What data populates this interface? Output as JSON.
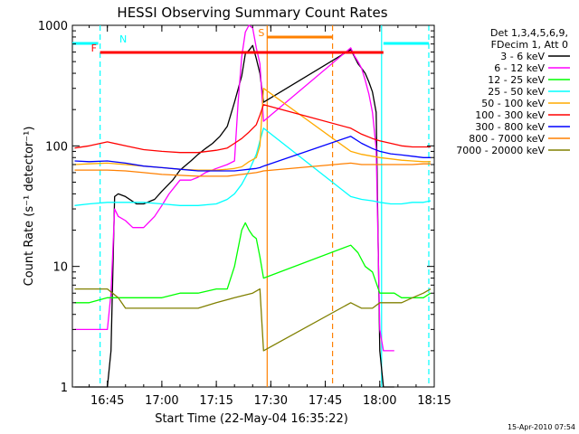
{
  "chart_data": {
    "type": "line",
    "title": "HESSI Observing Summary Count Rates",
    "xlabel": "Start Time (22-May-04 16:35:22)",
    "ylabel": "Count Rate (s⁻¹ detector⁻¹)",
    "yscale": "log",
    "ylim": [
      1,
      1000
    ],
    "xlim": [
      "16:35:22",
      "18:15:00"
    ],
    "x_ticks": [
      "16:45",
      "17:00",
      "17:15",
      "17:30",
      "17:45",
      "18:00",
      "18:15"
    ],
    "y_ticks": [
      "1",
      "10",
      "100",
      "1000"
    ],
    "legend_header": [
      "Det 1,3,4,5,6,9,",
      "FDecim 1, Att 0"
    ],
    "legend_position": "right",
    "timestamp": "15-Apr-2010 07:54",
    "series": [
      {
        "name": "3 - 6 keV",
        "color": "#000000",
        "x": [
          "16:36",
          "16:40",
          "16:44",
          "16:45",
          "16:46",
          "16:47",
          "16:48",
          "16:50",
          "16:53",
          "16:55",
          "16:58",
          "17:00",
          "17:03",
          "17:05",
          "17:08",
          "17:10",
          "17:12",
          "17:14",
          "17:16",
          "17:18",
          "17:20",
          "17:22",
          "17:23",
          "17:24",
          "17:25",
          "17:26",
          "17:27",
          "17:28",
          "17:52",
          "17:53",
          "17:54",
          "17:55",
          "17:56",
          "17:57",
          "17:58",
          "17:59",
          "18:00",
          "18:01",
          "18:02",
          "18:04"
        ],
        "y": [
          1,
          1,
          1,
          1,
          2,
          38,
          40,
          38,
          33,
          33,
          36,
          42,
          52,
          63,
          75,
          85,
          95,
          105,
          120,
          145,
          230,
          380,
          580,
          620,
          680,
          530,
          400,
          230,
          630,
          550,
          480,
          440,
          400,
          340,
          280,
          190,
          2,
          1,
          1,
          1
        ]
      },
      {
        "name": "6 - 12 keV",
        "color": "#ff00ff",
        "x": [
          "16:36",
          "16:40",
          "16:44",
          "16:45",
          "16:46",
          "16:47",
          "16:48",
          "16:50",
          "16:52",
          "16:55",
          "16:58",
          "17:00",
          "17:02",
          "17:05",
          "17:08",
          "17:10",
          "17:12",
          "17:15",
          "17:18",
          "17:20",
          "17:21",
          "17:22",
          "17:23",
          "17:24",
          "17:25",
          "17:26",
          "17:27",
          "17:28",
          "17:52",
          "17:53",
          "17:54",
          "17:55",
          "17:56",
          "17:57",
          "17:58",
          "17:59",
          "18:00",
          "18:01",
          "18:02",
          "18:04"
        ],
        "y": [
          3,
          3,
          3,
          3,
          6,
          30,
          26,
          24,
          21,
          21,
          26,
          32,
          40,
          52,
          52,
          55,
          60,
          65,
          70,
          75,
          230,
          550,
          880,
          1000,
          950,
          650,
          480,
          160,
          650,
          560,
          500,
          440,
          350,
          270,
          190,
          95,
          3,
          2,
          2,
          2
        ]
      },
      {
        "name": "12 - 25 keV",
        "color": "#00ff00",
        "x": [
          "16:36",
          "16:40",
          "16:45",
          "16:50",
          "16:55",
          "17:00",
          "17:05",
          "17:10",
          "17:15",
          "17:18",
          "17:20",
          "17:22",
          "17:23",
          "17:24",
          "17:25",
          "17:26",
          "17:27",
          "17:28",
          "17:52",
          "17:54",
          "17:56",
          "17:58",
          "18:00",
          "18:02",
          "18:04",
          "18:06",
          "18:09",
          "18:12",
          "18:14"
        ],
        "y": [
          5,
          5,
          5.5,
          5.5,
          5.5,
          5.5,
          6,
          6,
          6.5,
          6.5,
          10,
          20,
          23,
          20,
          18,
          17,
          12,
          8,
          15,
          13,
          10,
          9,
          6,
          6,
          6,
          5.5,
          5.5,
          5.5,
          6
        ]
      },
      {
        "name": "25 - 50 keV",
        "color": "#00ffff",
        "x": [
          "16:36",
          "16:40",
          "16:45",
          "16:50",
          "16:55",
          "17:00",
          "17:05",
          "17:10",
          "17:15",
          "17:18",
          "17:20",
          "17:22",
          "17:24",
          "17:26",
          "17:27",
          "17:28",
          "17:52",
          "17:55",
          "17:58",
          "18:00",
          "18:03",
          "18:06",
          "18:09",
          "18:12",
          "18:14"
        ],
        "y": [
          32,
          33,
          34,
          34,
          34,
          33,
          32,
          32,
          33,
          36,
          40,
          48,
          62,
          85,
          110,
          140,
          38,
          36,
          35,
          34,
          33,
          33,
          34,
          34,
          35
        ]
      },
      {
        "name": "50 - 100 keV",
        "color": "#ffaa00",
        "x": [
          "16:36",
          "16:40",
          "16:45",
          "16:50",
          "16:55",
          "17:00",
          "17:05",
          "17:10",
          "17:15",
          "17:18",
          "17:20",
          "17:22",
          "17:24",
          "17:26",
          "17:27",
          "17:28",
          "17:52",
          "17:55",
          "17:58",
          "18:00",
          "18:03",
          "18:06",
          "18:09",
          "18:12",
          "18:14"
        ],
        "y": [
          70,
          71,
          72,
          70,
          68,
          66,
          64,
          63,
          63,
          64,
          65,
          67,
          74,
          80,
          100,
          300,
          90,
          85,
          82,
          80,
          78,
          76,
          75,
          74,
          74
        ]
      },
      {
        "name": "100 - 300 keV",
        "color": "#ff0000",
        "x": [
          "16:36",
          "16:40",
          "16:45",
          "16:50",
          "16:55",
          "17:00",
          "17:05",
          "17:10",
          "17:15",
          "17:18",
          "17:20",
          "17:22",
          "17:24",
          "17:26",
          "17:27",
          "17:28",
          "17:52",
          "17:55",
          "17:58",
          "18:00",
          "18:03",
          "18:06",
          "18:09",
          "18:12",
          "18:14"
        ],
        "y": [
          96,
          100,
          108,
          100,
          93,
          90,
          88,
          88,
          92,
          96,
          105,
          115,
          130,
          150,
          180,
          220,
          140,
          125,
          115,
          110,
          105,
          100,
          98,
          98,
          98
        ]
      },
      {
        "name": "300 - 800 keV",
        "color": "#0000ff",
        "x": [
          "16:36",
          "16:40",
          "16:45",
          "16:50",
          "16:55",
          "17:00",
          "17:05",
          "17:10",
          "17:15",
          "17:18",
          "17:20",
          "17:22",
          "17:24",
          "17:26",
          "17:27",
          "17:28",
          "17:52",
          "17:55",
          "17:58",
          "18:00",
          "18:03",
          "18:06",
          "18:09",
          "18:12",
          "18:14"
        ],
        "y": [
          75,
          74,
          75,
          72,
          68,
          66,
          64,
          62,
          62,
          62,
          62,
          63,
          64,
          65,
          66,
          68,
          120,
          105,
          95,
          90,
          86,
          84,
          82,
          80,
          80
        ]
      },
      {
        "name": "800 - 7000 keV",
        "color": "#ff8000",
        "x": [
          "16:36",
          "16:40",
          "16:45",
          "16:50",
          "16:55",
          "17:00",
          "17:05",
          "17:10",
          "17:15",
          "17:18",
          "17:20",
          "17:22",
          "17:24",
          "17:26",
          "17:27",
          "17:28",
          "17:52",
          "17:55",
          "17:58",
          "18:00",
          "18:03",
          "18:06",
          "18:09",
          "18:12",
          "18:14"
        ],
        "y": [
          63,
          63,
          63,
          62,
          60,
          58,
          57,
          56,
          56,
          56,
          57,
          58,
          59,
          60,
          61,
          62,
          72,
          70,
          70,
          70,
          70,
          70,
          70,
          71,
          71
        ]
      },
      {
        "name": "7000 - 20000 keV",
        "color": "#808000",
        "x": [
          "16:36",
          "16:40",
          "16:45",
          "16:48",
          "16:50",
          "16:55",
          "17:00",
          "17:05",
          "17:10",
          "17:15",
          "17:20",
          "17:25",
          "17:27",
          "17:28",
          "17:52",
          "17:55",
          "17:58",
          "18:00",
          "18:03",
          "18:06",
          "18:09",
          "18:12",
          "18:14"
        ],
        "y": [
          6.5,
          6.5,
          6.5,
          5.5,
          4.5,
          4.5,
          4.5,
          4.5,
          4.5,
          5,
          5.5,
          6,
          6.5,
          2,
          5,
          4.5,
          4.5,
          5,
          5,
          5,
          5.5,
          6,
          6.5
        ]
      }
    ],
    "flag_bars": [
      {
        "label": "N",
        "color": "#00ffff",
        "segments": [
          [
            "16:35:22",
            "16:42:30"
          ],
          [
            "18:01:00",
            "18:13:30"
          ]
        ]
      },
      {
        "label": "F",
        "color": "#ff0000",
        "segments": [
          [
            "16:43:00",
            "18:01:00"
          ]
        ]
      },
      {
        "label": "S",
        "color": "#ff8000",
        "segments": [
          [
            "17:29:00",
            "17:47:00"
          ]
        ]
      }
    ],
    "vertical_lines": [
      {
        "x": "16:43:00",
        "color": "#00ffff",
        "style": "dashed"
      },
      {
        "x": "18:00:30",
        "color": "#00ffff",
        "style": "solid"
      },
      {
        "x": "18:13:30",
        "color": "#00ffff",
        "style": "dashed"
      },
      {
        "x": "17:29:00",
        "color": "#ff8000",
        "style": "solid"
      },
      {
        "x": "17:47:00",
        "color": "#ff8000",
        "style": "dashed"
      }
    ]
  }
}
